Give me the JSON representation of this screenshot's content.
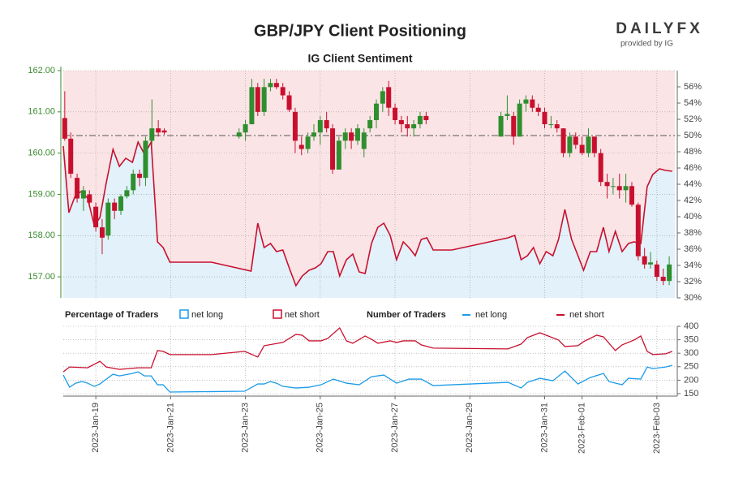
{
  "chart_data": [
    {
      "type": "candlestick",
      "title": "GBP/JPY Client Positioning",
      "subtitle": "IG Client Sentiment",
      "brand": "DAILYFX",
      "provider": "provided by IG",
      "legend_title": "Percentage of Traders",
      "up_color": "#2f8f2f",
      "down_color": "#c8102e",
      "grid": true,
      "xlim": [
        0.13,
        16.48
      ],
      "ylim": [
        156.49,
        162
      ],
      "yticks": [
        {
          "value": 157,
          "label": "157.00"
        },
        {
          "value": 158,
          "label": "158.00"
        },
        {
          "value": 159,
          "label": "159.00"
        },
        {
          "value": 160,
          "label": "160.00"
        },
        {
          "value": 161,
          "label": "161.00"
        },
        {
          "value": 162,
          "label": "162.00"
        }
      ],
      "y2lim": [
        30,
        58
      ],
      "y2ticks": [
        {
          "value": 30,
          "label": "30%"
        },
        {
          "value": 32,
          "label": "32%"
        },
        {
          "value": 34,
          "label": "34%"
        },
        {
          "value": 36,
          "label": "36%"
        },
        {
          "value": 38,
          "label": "38%"
        },
        {
          "value": 40,
          "label": "40%"
        },
        {
          "value": 42,
          "label": "42%"
        },
        {
          "value": 44,
          "label": "44%"
        },
        {
          "value": 46,
          "label": "46%"
        },
        {
          "value": 48,
          "label": "48%"
        },
        {
          "value": 50,
          "label": "50%"
        },
        {
          "value": 52,
          "label": "52%"
        },
        {
          "value": 54,
          "label": "54%"
        },
        {
          "value": 56,
          "label": "56%"
        }
      ],
      "y2_reference": 50,
      "x": [
        0.17,
        0.33,
        0.5,
        0.67,
        0.83,
        1,
        1.17,
        1.33,
        1.5,
        1.67,
        1.83,
        2,
        2.17,
        2.33,
        2.5,
        2.67,
        2.83,
        4.83,
        5,
        5.17,
        5.33,
        5.5,
        5.67,
        5.83,
        6,
        6.17,
        6.33,
        6.5,
        6.67,
        6.83,
        7,
        7.17,
        7.33,
        7.5,
        7.67,
        7.83,
        8,
        8.17,
        8.33,
        8.5,
        8.67,
        8.83,
        9,
        9.17,
        9.33,
        9.5,
        9.67,
        9.83,
        11.83,
        12,
        12.17,
        12.33,
        12.5,
        12.67,
        12.83,
        13,
        13.17,
        13.33,
        13.5,
        13.67,
        13.83,
        14,
        14.17,
        14.33,
        14.5,
        14.67,
        14.83,
        15,
        15.17,
        15.33,
        15.5,
        15.67,
        15.83,
        16,
        16.17,
        16.33
      ],
      "open": [
        160.85,
        160.35,
        159.4,
        158.9,
        159.0,
        158.7,
        158.2,
        158.0,
        158.8,
        158.6,
        158.95,
        159.1,
        159.5,
        159.4,
        160.3,
        160.6,
        160.55,
        160.4,
        160.5,
        160.7,
        161.6,
        161.0,
        161.6,
        161.7,
        161.6,
        161.4,
        161.0,
        160.2,
        160.1,
        160.4,
        160.5,
        160.8,
        160.6,
        159.6,
        160.3,
        160.5,
        160.3,
        160.1,
        160.6,
        160.8,
        161.2,
        161.6,
        161.1,
        160.8,
        160.7,
        160.6,
        160.7,
        160.9,
        160.4,
        160.9,
        160.9,
        160.4,
        161.2,
        161.3,
        161.1,
        161.0,
        160.7,
        160.7,
        160.6,
        160.0,
        160.4,
        160.2,
        160.0,
        160.4,
        160.0,
        159.3,
        159.2,
        159.2,
        159.1,
        159.2,
        158.75,
        157.5,
        157.3,
        157.3,
        157.0,
        156.9
      ],
      "high": [
        161.5,
        160.5,
        159.5,
        159.2,
        159.1,
        158.8,
        158.4,
        158.9,
        158.9,
        159.0,
        159.2,
        159.6,
        159.6,
        160.4,
        161.3,
        160.8,
        160.6,
        160.6,
        160.8,
        161.8,
        161.7,
        161.8,
        161.8,
        161.8,
        161.7,
        161.5,
        161.1,
        160.4,
        160.5,
        160.7,
        160.9,
        161.0,
        160.7,
        160.4,
        160.6,
        160.6,
        160.7,
        160.6,
        160.9,
        161.3,
        161.6,
        161.75,
        161.2,
        160.9,
        160.9,
        160.8,
        161.0,
        161.0,
        161.0,
        161.4,
        161.0,
        161.3,
        161.4,
        161.4,
        161.2,
        161.1,
        160.9,
        160.8,
        160.6,
        160.5,
        160.5,
        160.4,
        160.6,
        160.4,
        160.1,
        159.5,
        159.4,
        159.5,
        159.5,
        159.3,
        158.8,
        157.7,
        157.6,
        157.4,
        157.2,
        157.5
      ],
      "low": [
        160.3,
        159.4,
        158.8,
        158.6,
        158.7,
        158.1,
        157.55,
        157.9,
        158.4,
        158.5,
        158.9,
        159.0,
        159.2,
        159.2,
        160.2,
        160.4,
        160.45,
        160.35,
        160.3,
        160.7,
        160.9,
        160.9,
        161.5,
        161.55,
        161.3,
        161.0,
        160.0,
        159.95,
        160.0,
        160.3,
        160.2,
        160.5,
        159.5,
        159.6,
        160.1,
        160.1,
        160.2,
        159.9,
        160.5,
        160.6,
        161.0,
        160.9,
        160.7,
        160.5,
        160.4,
        160.4,
        160.6,
        160.7,
        160.4,
        160.8,
        160.2,
        160.4,
        161.0,
        161.0,
        160.9,
        160.6,
        160.6,
        160.5,
        159.9,
        159.9,
        160.1,
        159.95,
        159.9,
        159.9,
        159.2,
        158.9,
        159.0,
        158.9,
        158.8,
        158.7,
        157.4,
        157.2,
        157.2,
        156.9,
        156.8,
        156.8
      ],
      "close": [
        160.35,
        159.5,
        158.9,
        159.1,
        158.8,
        158.2,
        157.95,
        158.8,
        158.6,
        158.95,
        159.1,
        159.5,
        159.4,
        160.3,
        160.6,
        160.5,
        160.5,
        160.5,
        160.7,
        161.6,
        161.0,
        161.6,
        161.7,
        161.6,
        161.4,
        161.05,
        160.3,
        160.1,
        160.4,
        160.5,
        160.8,
        160.6,
        159.6,
        160.3,
        160.5,
        160.3,
        160.6,
        160.5,
        160.8,
        161.2,
        161.5,
        161.1,
        160.8,
        160.7,
        160.6,
        160.7,
        160.9,
        160.8,
        160.9,
        160.95,
        160.4,
        161.2,
        161.3,
        161.1,
        161.0,
        160.7,
        160.7,
        160.6,
        160.0,
        160.4,
        160.2,
        160.0,
        160.4,
        160.0,
        159.3,
        159.2,
        159.2,
        159.1,
        159.2,
        158.75,
        157.5,
        157.3,
        157.35,
        157.0,
        156.9,
        157.3
      ],
      "areas": [
        {
          "name": "net long",
          "color": "#e2f1fa",
          "edge": "#1a9be8"
        },
        {
          "name": "net short",
          "color": "#fbe4e6",
          "edge": "#c8102e"
        }
      ],
      "series": [
        {
          "name": "net short",
          "color": "#c8102e",
          "axis": "y2",
          "x": [
            0.13,
            0.28,
            0.46,
            0.61,
            0.78,
            0.96,
            1.11,
            1.28,
            1.46,
            1.63,
            1.8,
            1.98,
            2.13,
            2.3,
            2.48,
            2.65,
            2.8,
            2.98,
            4.09,
            5.15,
            5.33,
            5.5,
            5.67,
            5.83,
            6.0,
            6.17,
            6.35,
            6.52,
            6.7,
            6.87,
            7.02,
            7.2,
            7.35,
            7.52,
            7.7,
            7.87,
            8.04,
            8.2,
            8.37,
            8.54,
            8.7,
            8.87,
            9.04,
            9.22,
            9.37,
            9.54,
            9.7,
            9.85,
            10.02,
            10.52,
            12.02,
            12.2,
            12.37,
            12.54,
            12.7,
            12.87,
            13.04,
            13.22,
            13.37,
            13.54,
            13.72,
            13.89,
            14.04,
            14.22,
            14.39,
            14.57,
            14.72,
            14.89,
            15.07,
            15.24,
            15.39,
            15.57,
            15.74,
            15.89,
            16.07,
            16.24,
            16.41
          ],
          "values": [
            48.7,
            40.5,
            42.7,
            43.1,
            42.3,
            38.9,
            39.9,
            44.2,
            48.3,
            46.2,
            47.2,
            46.7,
            49.2,
            47.7,
            49.2,
            36.9,
            36.2,
            34.4,
            34.4,
            33.3,
            39.2,
            36.2,
            36.7,
            35.7,
            35.9,
            33.7,
            31.5,
            32.7,
            33.4,
            33.7,
            34.2,
            35.7,
            35.7,
            32.7,
            34.7,
            35.4,
            33.2,
            33.0,
            36.7,
            38.7,
            39.2,
            37.7,
            34.7,
            36.9,
            36.2,
            35.2,
            37.2,
            37.4,
            35.9,
            35.9,
            37.4,
            37.7,
            34.7,
            35.2,
            36.2,
            34.2,
            35.7,
            35.2,
            37.2,
            40.9,
            37.2,
            35.2,
            33.4,
            35.7,
            35.7,
            38.7,
            35.7,
            38.2,
            35.7,
            36.7,
            36.9,
            36.7,
            43.7,
            45.2,
            45.9,
            45.7,
            45.6
          ]
        }
      ]
    },
    {
      "type": "line",
      "legend_title": "Number of Traders",
      "grid": true,
      "xlim": [
        0.13,
        16.48
      ],
      "xticks": [
        {
          "value": 1,
          "label": "2023-Jan-19"
        },
        {
          "value": 3,
          "label": "2023-Jan-21"
        },
        {
          "value": 5,
          "label": "2023-Jan-23"
        },
        {
          "value": 7,
          "label": "2023-Jan-25"
        },
        {
          "value": 9,
          "label": "2023-Jan-27"
        },
        {
          "value": 11,
          "label": "2023-Jan-29"
        },
        {
          "value": 13,
          "label": "2023-Jan-31"
        },
        {
          "value": 14,
          "label": "2023-Feb-01"
        },
        {
          "value": 16,
          "label": "2023-Feb-03"
        }
      ],
      "ylim": [
        141,
        400
      ],
      "yticks": [
        150,
        200,
        250,
        300,
        350,
        400
      ],
      "series": [
        {
          "name": "net long",
          "color": "#1a9be8",
          "x": [
            0.13,
            0.3,
            0.46,
            0.63,
            0.78,
            0.96,
            1.11,
            1.28,
            1.46,
            1.63,
            1.98,
            2.13,
            2.3,
            2.48,
            2.65,
            2.8,
            2.98,
            4.98,
            5.33,
            5.5,
            5.67,
            5.83,
            6.0,
            6.35,
            6.7,
            7.02,
            7.35,
            7.7,
            8.04,
            8.37,
            8.7,
            9.04,
            9.37,
            9.7,
            10.02,
            12.02,
            12.37,
            12.54,
            12.87,
            13.22,
            13.54,
            13.89,
            14.22,
            14.57,
            14.72,
            15.07,
            15.24,
            15.57,
            15.74,
            15.89,
            16.24,
            16.41
          ],
          "values": [
            219,
            174,
            189,
            195,
            189,
            177,
            186,
            204,
            222,
            216,
            225,
            231,
            216,
            216,
            183,
            183,
            156,
            159,
            186,
            186,
            195,
            189,
            177,
            171,
            174,
            183,
            204,
            189,
            183,
            213,
            219,
            189,
            204,
            204,
            180,
            192,
            171,
            192,
            207,
            198,
            234,
            186,
            210,
            225,
            195,
            183,
            207,
            204,
            249,
            243,
            249,
            255
          ]
        },
        {
          "name": "net short",
          "color": "#c8102e",
          "x": [
            0.13,
            0.3,
            0.78,
            1.11,
            1.28,
            1.63,
            2.13,
            2.48,
            2.65,
            2.8,
            2.98,
            4.09,
            4.98,
            5.33,
            5.5,
            6.0,
            6.35,
            6.52,
            6.7,
            7.02,
            7.2,
            7.52,
            7.7,
            7.87,
            8.2,
            8.37,
            8.54,
            8.87,
            9.04,
            9.22,
            9.54,
            9.7,
            10.02,
            12.02,
            12.37,
            12.54,
            12.87,
            13.04,
            13.37,
            13.54,
            13.89,
            14.04,
            14.39,
            14.57,
            14.89,
            15.07,
            15.39,
            15.57,
            15.74,
            15.89,
            16.24,
            16.41
          ],
          "values": [
            231,
            249,
            246,
            270,
            249,
            240,
            246,
            246,
            310,
            307,
            295,
            295,
            307,
            286,
            328,
            340,
            370,
            367,
            346,
            346,
            355,
            394,
            346,
            337,
            364,
            352,
            337,
            346,
            340,
            346,
            346,
            331,
            319,
            316,
            334,
            358,
            376,
            367,
            349,
            325,
            328,
            343,
            367,
            361,
            310,
            331,
            349,
            364,
            307,
            295,
            298,
            307
          ]
        }
      ]
    }
  ]
}
